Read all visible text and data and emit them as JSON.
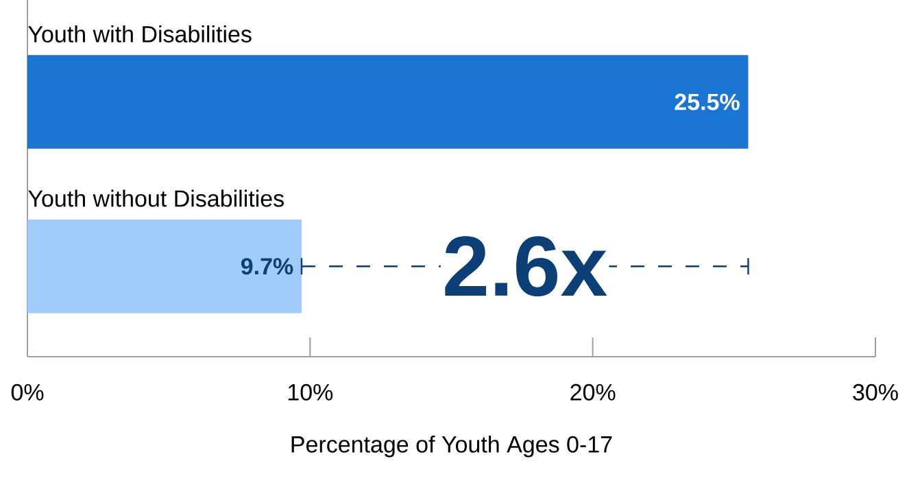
{
  "chart_data": {
    "type": "bar",
    "orientation": "horizontal",
    "categories": [
      "Youth with Disabilities",
      "Youth without Disabilities"
    ],
    "values": [
      25.5,
      9.7
    ],
    "colors": [
      "#1a76d2",
      "#a0cbf8"
    ],
    "value_labels": [
      "25.5%",
      "9.7%"
    ],
    "xlim": [
      0,
      30
    ],
    "xticks": [
      {
        "value": 0,
        "label": "0%"
      },
      {
        "value": 10,
        "label": "10%"
      },
      {
        "value": 20,
        "label": "20%"
      },
      {
        "value": 30,
        "label": "30%"
      }
    ],
    "xlabel": "Percentage of Youth Ages 0-17",
    "annotations": [
      "2.6x"
    ],
    "grid": false
  }
}
